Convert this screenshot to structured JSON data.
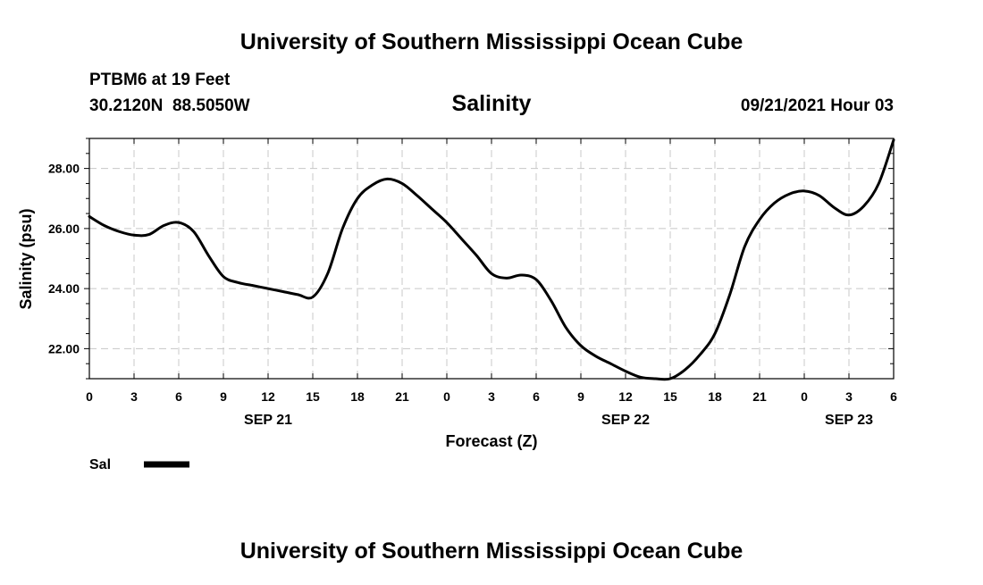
{
  "header": {
    "title": "University of Southern Mississippi Ocean Cube",
    "station": "PTBM6 at 19 Feet",
    "coords": "30.2120N  88.5050W",
    "variable": "Salinity",
    "timestamp": "09/21/2021 Hour 03"
  },
  "footer": {
    "title": "University of Southern Mississippi Ocean Cube"
  },
  "chart_data": {
    "type": "line",
    "title": "Salinity",
    "xlabel": "Forecast (Z)",
    "ylabel": "Salinity (psu)",
    "xlim": [
      0,
      54
    ],
    "ylim": [
      21,
      29
    ],
    "grid": true,
    "legend_position": "bottom-left",
    "x_ticks": [
      {
        "h": 0,
        "label": "0"
      },
      {
        "h": 3,
        "label": "3"
      },
      {
        "h": 6,
        "label": "6"
      },
      {
        "h": 9,
        "label": "9"
      },
      {
        "h": 12,
        "label": "12"
      },
      {
        "h": 15,
        "label": "15"
      },
      {
        "h": 18,
        "label": "18"
      },
      {
        "h": 21,
        "label": "21"
      },
      {
        "h": 24,
        "label": "0"
      },
      {
        "h": 27,
        "label": "3"
      },
      {
        "h": 30,
        "label": "6"
      },
      {
        "h": 33,
        "label": "9"
      },
      {
        "h": 36,
        "label": "12"
      },
      {
        "h": 39,
        "label": "15"
      },
      {
        "h": 42,
        "label": "18"
      },
      {
        "h": 45,
        "label": "21"
      },
      {
        "h": 48,
        "label": "0"
      },
      {
        "h": 51,
        "label": "3"
      },
      {
        "h": 54,
        "label": "6"
      }
    ],
    "date_labels": [
      {
        "h": 12,
        "label": "SEP 21"
      },
      {
        "h": 36,
        "label": "SEP 22"
      },
      {
        "h": 51,
        "label": "SEP 23"
      }
    ],
    "y_ticks": [
      {
        "v": 22,
        "label": "22.00"
      },
      {
        "v": 24,
        "label": "24.00"
      },
      {
        "v": 26,
        "label": "26.00"
      },
      {
        "v": 28,
        "label": "28.00"
      }
    ],
    "y_minor": [
      21,
      21.5,
      22,
      22.5,
      23,
      23.5,
      24,
      24.5,
      25,
      25.5,
      26,
      26.5,
      27,
      27.5,
      28,
      28.5,
      29
    ],
    "series": [
      {
        "name": "Sal",
        "color": "#000000",
        "x": [
          0,
          1,
          2,
          3,
          4,
          5,
          6,
          7,
          8,
          9,
          10,
          11,
          12,
          13,
          14,
          15,
          16,
          17,
          18,
          19,
          20,
          21,
          22,
          23,
          24,
          25,
          26,
          27,
          28,
          29,
          30,
          31,
          32,
          33,
          34,
          35,
          36,
          37,
          38,
          39,
          40,
          41,
          42,
          43,
          44,
          45,
          46,
          47,
          48,
          49,
          50,
          51,
          52,
          53,
          54
        ],
        "y": [
          26.4,
          26.1,
          25.9,
          25.78,
          25.8,
          26.1,
          26.2,
          25.9,
          25.1,
          24.4,
          24.2,
          24.1,
          24.0,
          23.9,
          23.8,
          23.72,
          24.5,
          26.0,
          27.0,
          27.45,
          27.65,
          27.5,
          27.1,
          26.65,
          26.2,
          25.65,
          25.1,
          24.5,
          24.35,
          24.45,
          24.3,
          23.6,
          22.7,
          22.1,
          21.75,
          21.5,
          21.25,
          21.05,
          21.0,
          21.0,
          21.3,
          21.8,
          22.5,
          23.8,
          25.4,
          26.3,
          26.85,
          27.15,
          27.25,
          27.1,
          26.7,
          26.45,
          26.75,
          27.5,
          28.95
        ]
      }
    ]
  }
}
